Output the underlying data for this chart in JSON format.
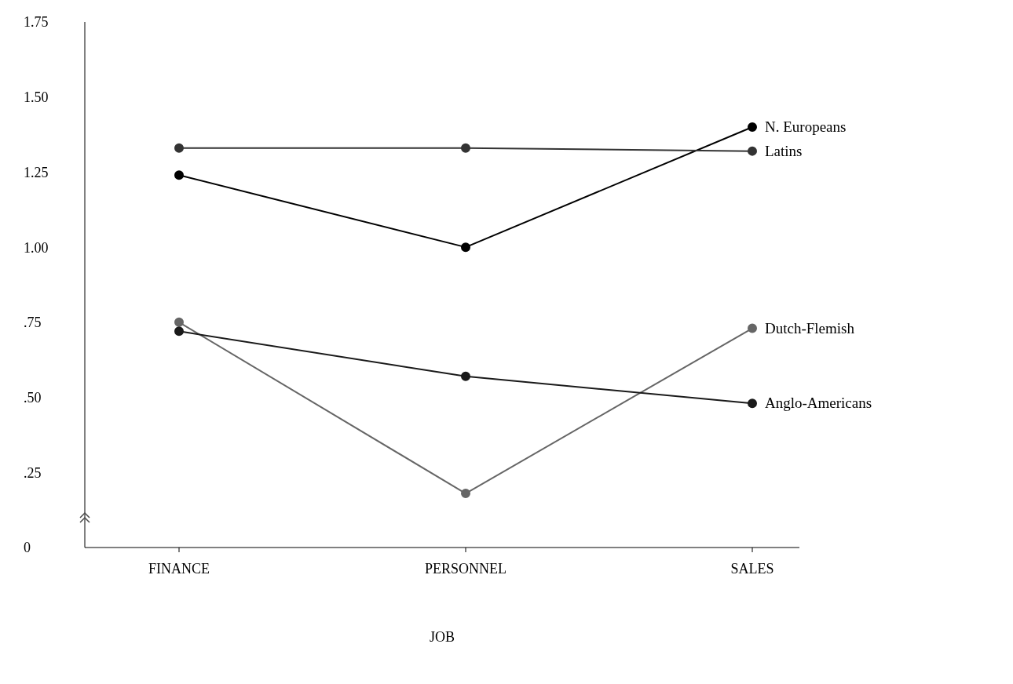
{
  "chart_data": {
    "type": "line",
    "xlabel": "JOB",
    "categories": [
      "FINANCE",
      "PERSONNEL",
      "SALES"
    ],
    "series": [
      {
        "name": "N. Europeans",
        "color": "#000000",
        "values": [
          1.24,
          1.0,
          1.4
        ]
      },
      {
        "name": "Latins",
        "color": "#333333",
        "values": [
          1.33,
          1.33,
          1.32
        ]
      },
      {
        "name": "Dutch-Flemish",
        "color": "#666666",
        "values": [
          0.75,
          0.18,
          0.73
        ]
      },
      {
        "name": "Anglo-Americans",
        "color": "#1a1a1a",
        "values": [
          0.72,
          0.57,
          0.48
        ]
      }
    ],
    "ylim": [
      0,
      1.75
    ],
    "yticks": [
      0,
      {
        "value": 0.25,
        "label": ".25"
      },
      {
        "value": 0.5,
        "label": ".50"
      },
      {
        "value": 0.75,
        "label": ".75"
      },
      {
        "value": 1.0,
        "label": "1.00"
      },
      1.25,
      {
        "value": 1.5,
        "label": "1.50"
      },
      1.75
    ],
    "grid": false,
    "marker": "circle",
    "line_style": "solid"
  }
}
